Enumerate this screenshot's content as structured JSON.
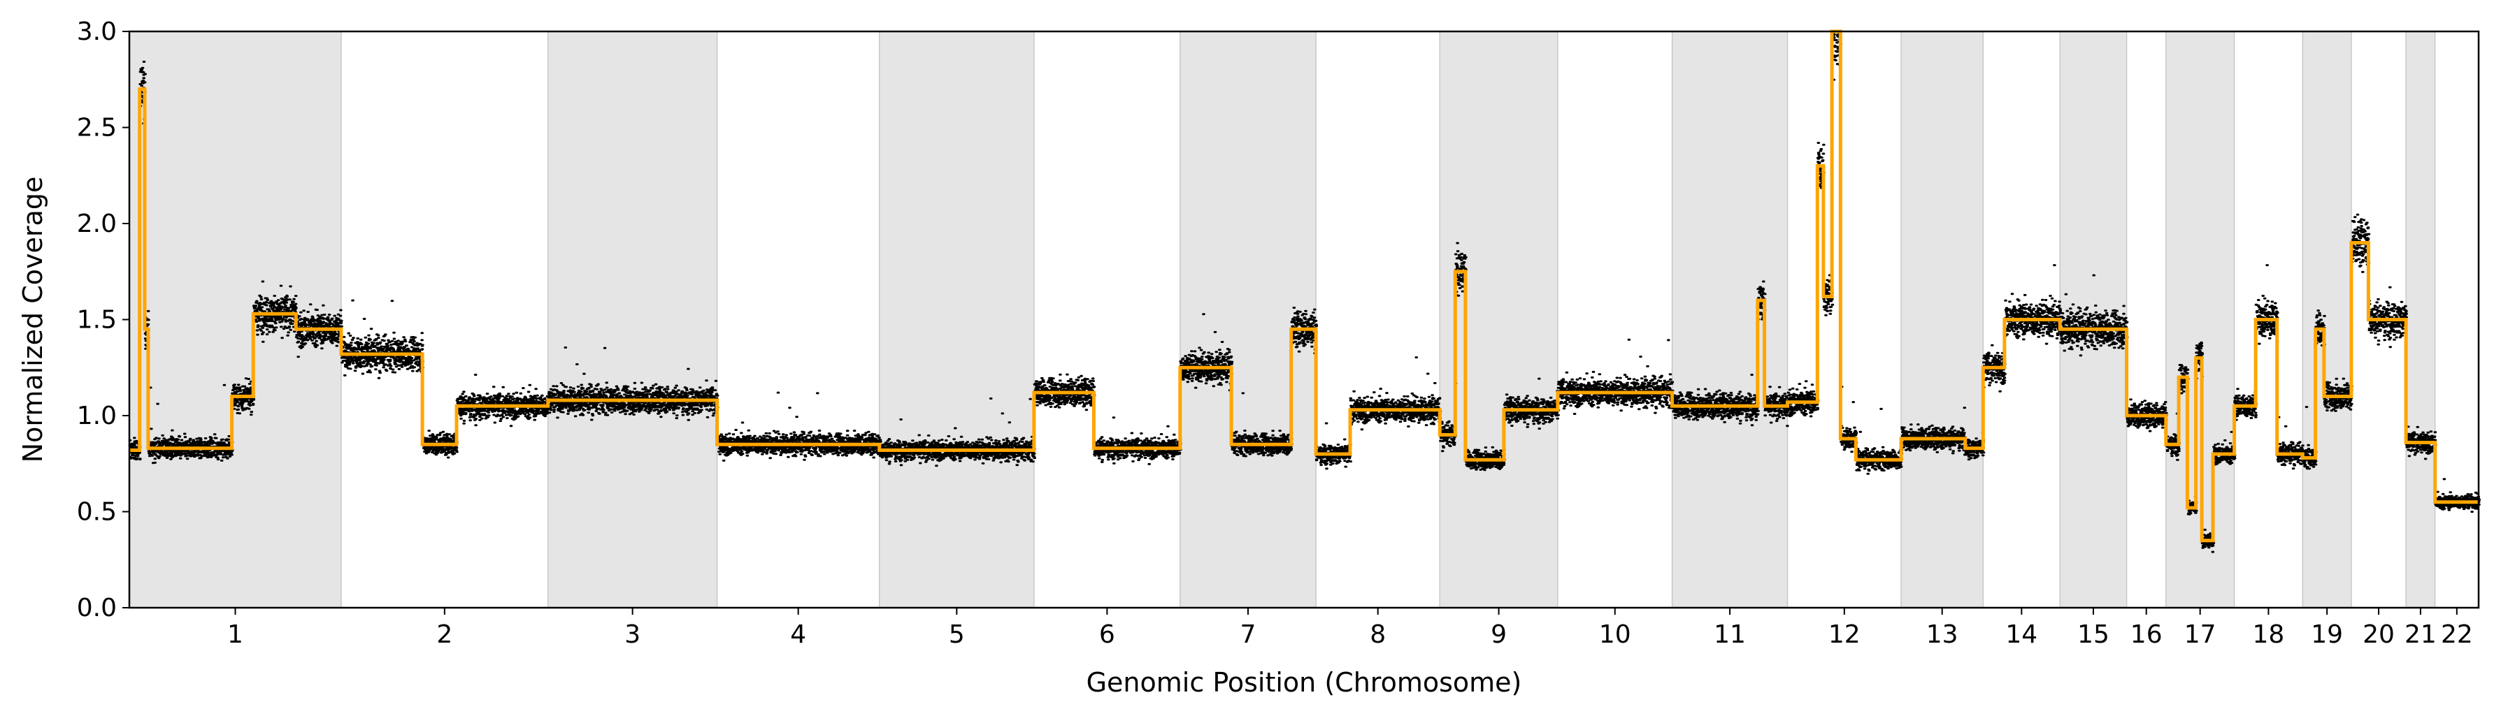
{
  "chart_data": {
    "type": "scatter",
    "title": "",
    "xlabel": "Genomic Position (Chromosome)",
    "ylabel": "Normalized Coverage",
    "ylim": [
      0,
      3
    ],
    "yticks": [
      "0.0",
      "0.5",
      "1.0",
      "1.5",
      "2.0",
      "2.5",
      "3.0"
    ],
    "grid": false,
    "legend": "none",
    "colors": {
      "points": "#000000",
      "segments": "#FFA500",
      "band": "#E5E5E5",
      "band_edge": "#C8C8C8"
    },
    "chromosomes": [
      {
        "label": "1",
        "length": 248
      },
      {
        "label": "2",
        "length": 242
      },
      {
        "label": "3",
        "length": 198
      },
      {
        "label": "4",
        "length": 190
      },
      {
        "label": "5",
        "length": 181
      },
      {
        "label": "6",
        "length": 171
      },
      {
        "label": "7",
        "length": 159
      },
      {
        "label": "8",
        "length": 145
      },
      {
        "label": "9",
        "length": 138
      },
      {
        "label": "10",
        "length": 134
      },
      {
        "label": "11",
        "length": 135
      },
      {
        "label": "12",
        "length": 133
      },
      {
        "label": "13",
        "length": 96
      },
      {
        "label": "14",
        "length": 90
      },
      {
        "label": "15",
        "length": 78
      },
      {
        "label": "16",
        "length": 46
      },
      {
        "label": "17",
        "length": 80
      },
      {
        "label": "18",
        "length": 80
      },
      {
        "label": "19",
        "length": 57
      },
      {
        "label": "20",
        "length": 64
      },
      {
        "label": "21",
        "length": 34
      },
      {
        "label": "22",
        "length": 51
      }
    ],
    "series": [
      {
        "type": "step",
        "segments": [
          {
            "chrom": "1",
            "start": 0,
            "end": 12,
            "value": 0.82
          },
          {
            "chrom": "1",
            "start": 12,
            "end": 18,
            "value": 2.7
          },
          {
            "chrom": "1",
            "start": 18,
            "end": 22,
            "value": 1.45
          },
          {
            "chrom": "1",
            "start": 22,
            "end": 120,
            "value": 0.83
          },
          {
            "chrom": "1",
            "start": 120,
            "end": 145,
            "value": 1.1
          },
          {
            "chrom": "1",
            "start": 145,
            "end": 195,
            "value": 1.53
          },
          {
            "chrom": "1",
            "start": 195,
            "end": 248,
            "value": 1.45
          },
          {
            "chrom": "2",
            "start": 0,
            "end": 95,
            "value": 1.32
          },
          {
            "chrom": "2",
            "start": 95,
            "end": 135,
            "value": 0.85
          },
          {
            "chrom": "2",
            "start": 135,
            "end": 242,
            "value": 1.05
          },
          {
            "chrom": "3",
            "start": 0,
            "end": 198,
            "value": 1.08
          },
          {
            "chrom": "4",
            "start": 0,
            "end": 190,
            "value": 0.85
          },
          {
            "chrom": "5",
            "start": 0,
            "end": 181,
            "value": 0.82
          },
          {
            "chrom": "6",
            "start": 0,
            "end": 70,
            "value": 1.12
          },
          {
            "chrom": "6",
            "start": 70,
            "end": 171,
            "value": 0.83
          },
          {
            "chrom": "7",
            "start": 0,
            "end": 60,
            "value": 1.25
          },
          {
            "chrom": "7",
            "start": 60,
            "end": 130,
            "value": 0.85
          },
          {
            "chrom": "7",
            "start": 130,
            "end": 159,
            "value": 1.45
          },
          {
            "chrom": "8",
            "start": 0,
            "end": 40,
            "value": 0.8
          },
          {
            "chrom": "8",
            "start": 40,
            "end": 145,
            "value": 1.03
          },
          {
            "chrom": "9",
            "start": 0,
            "end": 18,
            "value": 0.9
          },
          {
            "chrom": "9",
            "start": 18,
            "end": 30,
            "value": 1.75
          },
          {
            "chrom": "9",
            "start": 30,
            "end": 75,
            "value": 0.77
          },
          {
            "chrom": "9",
            "start": 75,
            "end": 138,
            "value": 1.03
          },
          {
            "chrom": "10",
            "start": 0,
            "end": 134,
            "value": 1.12
          },
          {
            "chrom": "11",
            "start": 0,
            "end": 100,
            "value": 1.05
          },
          {
            "chrom": "11",
            "start": 100,
            "end": 108,
            "value": 1.6
          },
          {
            "chrom": "11",
            "start": 108,
            "end": 135,
            "value": 1.05
          },
          {
            "chrom": "12",
            "start": 0,
            "end": 35,
            "value": 1.07
          },
          {
            "chrom": "12",
            "start": 35,
            "end": 42,
            "value": 2.3
          },
          {
            "chrom": "12",
            "start": 42,
            "end": 52,
            "value": 1.62
          },
          {
            "chrom": "12",
            "start": 52,
            "end": 62,
            "value": 3.0
          },
          {
            "chrom": "12",
            "start": 62,
            "end": 80,
            "value": 0.88
          },
          {
            "chrom": "12",
            "start": 80,
            "end": 133,
            "value": 0.77
          },
          {
            "chrom": "13",
            "start": 0,
            "end": 75,
            "value": 0.88
          },
          {
            "chrom": "13",
            "start": 75,
            "end": 96,
            "value": 0.83
          },
          {
            "chrom": "14",
            "start": 0,
            "end": 25,
            "value": 1.25
          },
          {
            "chrom": "14",
            "start": 25,
            "end": 90,
            "value": 1.5
          },
          {
            "chrom": "15",
            "start": 0,
            "end": 78,
            "value": 1.45
          },
          {
            "chrom": "16",
            "start": 0,
            "end": 46,
            "value": 1.0
          },
          {
            "chrom": "17",
            "start": 0,
            "end": 15,
            "value": 0.85
          },
          {
            "chrom": "17",
            "start": 15,
            "end": 25,
            "value": 1.2
          },
          {
            "chrom": "17",
            "start": 25,
            "end": 35,
            "value": 0.52
          },
          {
            "chrom": "17",
            "start": 35,
            "end": 42,
            "value": 1.3
          },
          {
            "chrom": "17",
            "start": 42,
            "end": 55,
            "value": 0.35
          },
          {
            "chrom": "17",
            "start": 55,
            "end": 80,
            "value": 0.8
          },
          {
            "chrom": "18",
            "start": 0,
            "end": 25,
            "value": 1.05
          },
          {
            "chrom": "18",
            "start": 25,
            "end": 50,
            "value": 1.5
          },
          {
            "chrom": "18",
            "start": 50,
            "end": 80,
            "value": 0.8
          },
          {
            "chrom": "19",
            "start": 0,
            "end": 15,
            "value": 0.78
          },
          {
            "chrom": "19",
            "start": 15,
            "end": 25,
            "value": 1.45
          },
          {
            "chrom": "19",
            "start": 25,
            "end": 57,
            "value": 1.1
          },
          {
            "chrom": "20",
            "start": 0,
            "end": 20,
            "value": 1.9
          },
          {
            "chrom": "20",
            "start": 20,
            "end": 64,
            "value": 1.5
          },
          {
            "chrom": "21",
            "start": 0,
            "end": 34,
            "value": 0.86
          },
          {
            "chrom": "22",
            "start": 0,
            "end": 51,
            "value": 0.55
          }
        ]
      }
    ]
  }
}
